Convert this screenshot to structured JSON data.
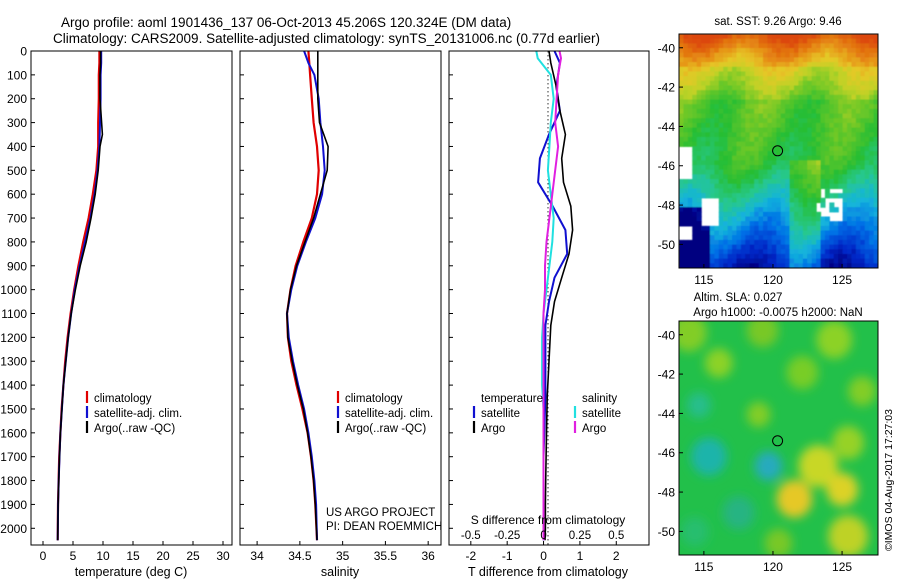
{
  "header": {
    "title_line1": "Argo profile: aoml 1901436_137 06-Oct-2013 45.206S 120.324E (DM data)",
    "title_line2": "Climatology: CARS2009. Satellite-adjusted climatology: synTS_20131006.nc (0.77d earlier)"
  },
  "credits": {
    "project": "US ARGO PROJECT",
    "pi": "PI: DEAN ROEMMICH",
    "copyright": "©IMOS 04-Aug-2017 17:27:03"
  },
  "colors": {
    "climatology": "#e00000",
    "satellite": "#1010d0",
    "argo": "#000000",
    "t_satellite": "#1010d0",
    "s_satellite": "#20e0e0",
    "s_argo": "#e020e0"
  },
  "chart_data": [
    {
      "type": "line",
      "id": "temperature",
      "xlabel": "temperature (deg C)",
      "ylabel": "",
      "xlim": [
        -2,
        31.5
      ],
      "ylim": [
        2070,
        0
      ],
      "xticks": [
        0,
        5,
        10,
        15,
        20,
        25,
        30
      ],
      "xtick_labels": [
        "0",
        "5",
        "10",
        "15",
        "20",
        "25",
        "30"
      ],
      "yticks": [
        0,
        100,
        200,
        300,
        400,
        500,
        600,
        700,
        800,
        900,
        1000,
        1100,
        1200,
        1300,
        1400,
        1500,
        1600,
        1700,
        1800,
        1900,
        2000
      ],
      "ytick_labels": [
        "0",
        "100",
        "200",
        "300",
        "400",
        "500",
        "600",
        "700",
        "800",
        "900",
        "1000",
        "1100",
        "1200",
        "1300",
        "1400",
        "1500",
        "1600",
        "1700",
        "1800",
        "1900",
        "2000"
      ],
      "legend": [
        "climatology",
        "satellite-adj. clim.",
        "Argo(..raw -QC)"
      ],
      "series": [
        {
          "name": "climatology",
          "color": "#e00000",
          "width": 2.2,
          "x": [
            9.4,
            9.4,
            9.3,
            9.3,
            9.2,
            9.2,
            8.9,
            8.3,
            7.6,
            6.7,
            5.9,
            5.2,
            4.6,
            4.1,
            3.7,
            3.4,
            3.1,
            2.9,
            2.7,
            2.6,
            2.5,
            2.45
          ],
          "y": [
            0,
            50,
            100,
            200,
            300,
            400,
            500,
            600,
            700,
            800,
            900,
            1000,
            1100,
            1200,
            1300,
            1400,
            1500,
            1600,
            1700,
            1800,
            1900,
            2050
          ]
        },
        {
          "name": "satellite-adj. clim.",
          "color": "#1010d0",
          "width": 2,
          "x": [
            9.7,
            9.7,
            9.6,
            9.6,
            9.5,
            9.4,
            9.1,
            8.6,
            7.9,
            7.0,
            6.1,
            5.3,
            4.7,
            4.2,
            3.8,
            3.4,
            3.15,
            2.9,
            2.75,
            2.62,
            2.52,
            2.45
          ],
          "y": [
            0,
            50,
            100,
            200,
            300,
            400,
            500,
            600,
            700,
            800,
            900,
            1000,
            1100,
            1200,
            1300,
            1400,
            1500,
            1600,
            1700,
            1800,
            1900,
            2050
          ]
        },
        {
          "name": "Argo(..raw -QC)",
          "color": "#000000",
          "width": 1.6,
          "x": [
            9.6,
            9.6,
            9.5,
            9.5,
            9.9,
            9.5,
            9.2,
            8.7,
            8.0,
            7.2,
            6.2,
            5.4,
            4.7,
            4.2,
            3.8,
            3.4,
            3.15,
            2.9,
            2.75,
            2.62,
            2.52,
            2.45
          ],
          "y": [
            0,
            50,
            100,
            200,
            350,
            400,
            500,
            600,
            700,
            800,
            900,
            1000,
            1100,
            1200,
            1300,
            1400,
            1500,
            1600,
            1700,
            1800,
            1900,
            2050
          ]
        }
      ]
    },
    {
      "type": "line",
      "id": "salinity",
      "xlabel": "salinity",
      "xlim": [
        33.8,
        36.15
      ],
      "ylim": [
        2070,
        0
      ],
      "xticks": [
        34,
        34.5,
        35,
        35.5,
        36
      ],
      "xtick_labels": [
        "34",
        "34.5",
        "35",
        "35.5",
        "36"
      ],
      "legend": [
        "climatology",
        "satellite-adj. clim.",
        "Argo(..raw -QC)"
      ],
      "series": [
        {
          "name": "climatology",
          "color": "#e00000",
          "width": 2.2,
          "x": [
            34.6,
            34.61,
            34.62,
            34.64,
            34.66,
            34.7,
            34.72,
            34.7,
            34.64,
            34.54,
            34.45,
            34.39,
            34.35,
            34.36,
            34.4,
            34.46,
            34.53,
            34.59,
            34.63,
            34.66,
            34.68,
            34.7
          ],
          "y": [
            0,
            50,
            100,
            200,
            300,
            400,
            500,
            600,
            700,
            800,
            900,
            1000,
            1100,
            1200,
            1300,
            1400,
            1500,
            1600,
            1700,
            1800,
            1900,
            2050
          ]
        },
        {
          "name": "satellite-adj. clim.",
          "color": "#1010d0",
          "width": 2,
          "x": [
            34.55,
            34.6,
            34.67,
            34.72,
            34.74,
            34.77,
            34.79,
            34.76,
            34.68,
            34.57,
            34.47,
            34.4,
            34.35,
            34.37,
            34.42,
            34.48,
            34.55,
            34.6,
            34.64,
            34.67,
            34.69,
            34.7
          ],
          "y": [
            0,
            50,
            100,
            200,
            300,
            400,
            500,
            600,
            700,
            800,
            900,
            1000,
            1100,
            1200,
            1300,
            1400,
            1500,
            1600,
            1700,
            1800,
            1900,
            2050
          ]
        },
        {
          "name": "Argo(..raw -QC)",
          "color": "#000000",
          "width": 1.6,
          "x": [
            34.71,
            34.71,
            34.71,
            34.71,
            34.73,
            34.83,
            34.82,
            34.74,
            34.66,
            34.56,
            34.46,
            34.39,
            34.35,
            34.36,
            34.41,
            34.47,
            34.54,
            34.59,
            34.63,
            34.66,
            34.68,
            34.7
          ],
          "y": [
            0,
            50,
            100,
            200,
            300,
            400,
            500,
            600,
            700,
            800,
            900,
            1000,
            1100,
            1200,
            1300,
            1400,
            1500,
            1600,
            1700,
            1800,
            1900,
            2050
          ]
        }
      ]
    },
    {
      "type": "line",
      "id": "differences",
      "xlabel": "T difference from climatology",
      "xlabel_top": "S difference from climatology",
      "xlim": [
        -2.6,
        2.9
      ],
      "s_xlim": [
        -0.65,
        0.725
      ],
      "ylim": [
        2070,
        0
      ],
      "xticks": [
        -2,
        -1,
        0,
        1,
        2
      ],
      "xtick_labels": [
        "-2",
        "-1",
        "0",
        "1",
        "2"
      ],
      "s_xticks": [
        -0.5,
        -0.25,
        0,
        0.25,
        0.5
      ],
      "s_xtick_labels": [
        "-0.5",
        "-0.25",
        "0",
        "0.25",
        "0.5"
      ],
      "legend_t_title": "temperature",
      "legend_s_title": "salinity",
      "legend_t": [
        "satellite",
        "Argo"
      ],
      "legend_s": [
        "satellite",
        "Argo"
      ],
      "series": [
        {
          "name": "T satellite",
          "color": "#1010d0",
          "width": 2,
          "axis": "T",
          "x": [
            0.3,
            0.45,
            0.35,
            0.45,
            0.15,
            -0.1,
            -0.15,
            0.25,
            0.6,
            0.65,
            0.3,
            0.15,
            0.05,
            0.05,
            0.05,
            0.02,
            0.0,
            0.0,
            0.0,
            0.0,
            0.0
          ],
          "y": [
            0,
            50,
            150,
            250,
            350,
            450,
            550,
            650,
            750,
            850,
            950,
            1050,
            1150,
            1300,
            1450,
            1600,
            1700,
            1800,
            1900,
            2000,
            2050
          ]
        },
        {
          "name": "T Argo",
          "color": "#000000",
          "width": 1.6,
          "axis": "T",
          "x": [
            0.15,
            0.2,
            0.35,
            0.45,
            0.6,
            0.5,
            0.55,
            0.75,
            0.8,
            0.7,
            0.5,
            0.3,
            0.2,
            0.15,
            0.1,
            0.08,
            0.07,
            0.06,
            0.05,
            0.05,
            0.04
          ],
          "y": [
            0,
            50,
            150,
            250,
            350,
            450,
            550,
            650,
            750,
            850,
            950,
            1050,
            1150,
            1300,
            1450,
            1600,
            1700,
            1800,
            1900,
            2000,
            2050
          ]
        },
        {
          "name": "S satellite",
          "color": "#20e0e0",
          "width": 2,
          "axis": "S",
          "x": [
            -0.05,
            -0.04,
            0.05,
            0.07,
            0.05,
            0.04,
            0.03,
            0.05,
            0.07,
            0.06,
            0.04,
            0.02,
            0.0,
            -0.01,
            -0.01,
            -0.01,
            0.0,
            0.0,
            0.0,
            0.0,
            0.0
          ],
          "y": [
            0,
            30,
            100,
            200,
            300,
            400,
            500,
            600,
            700,
            800,
            900,
            1000,
            1100,
            1200,
            1300,
            1400,
            1500,
            1600,
            1700,
            1800,
            2050
          ]
        },
        {
          "name": "S Argo",
          "color": "#e020e0",
          "width": 2,
          "axis": "S",
          "x": [
            0.11,
            0.12,
            0.1,
            0.09,
            0.08,
            0.1,
            0.08,
            0.06,
            0.04,
            0.02,
            0.01,
            0.01,
            0.0,
            0.0,
            0.0,
            0.0,
            0.0,
            0.0,
            0.0,
            0.0,
            0.0
          ],
          "y": [
            0,
            30,
            100,
            200,
            300,
            400,
            500,
            600,
            700,
            800,
            900,
            1000,
            1100,
            1200,
            1300,
            1400,
            1500,
            1600,
            1700,
            1800,
            2050
          ]
        }
      ]
    },
    {
      "type": "heatmap",
      "id": "sst-map",
      "title": "sat. SST: 9.26 Argo: 9.46",
      "xlim": [
        113.2,
        127.6
      ],
      "ylim": [
        -51.2,
        -39.3
      ],
      "xticks": [
        115,
        120,
        125
      ],
      "xtick_labels": [
        "115",
        "120",
        "125"
      ],
      "yticks": [
        -40,
        -42,
        -44,
        -46,
        -48,
        -50
      ],
      "ytick_labels": [
        "-40",
        "-42",
        "-44",
        "-46",
        "-48",
        "-50"
      ],
      "marker": {
        "lon": 120.324,
        "lat": -45.206
      }
    },
    {
      "type": "heatmap",
      "id": "sla-map",
      "title_line1": "Altim. SLA: 0.027",
      "title_line2": "Argo h1000: -0.0075 h2000: NaN",
      "xlim": [
        113.2,
        127.6
      ],
      "ylim": [
        -51.2,
        -39.3
      ],
      "xticks": [
        115,
        120,
        125
      ],
      "xtick_labels": [
        "115",
        "120",
        "125"
      ],
      "yticks": [
        -40,
        -42,
        -44,
        -46,
        -48,
        -50
      ],
      "ytick_labels": [
        "-40",
        "-42",
        "-44",
        "-46",
        "-48",
        "-50"
      ],
      "marker": {
        "lon": 120.324,
        "lat": -45.206
      }
    }
  ]
}
